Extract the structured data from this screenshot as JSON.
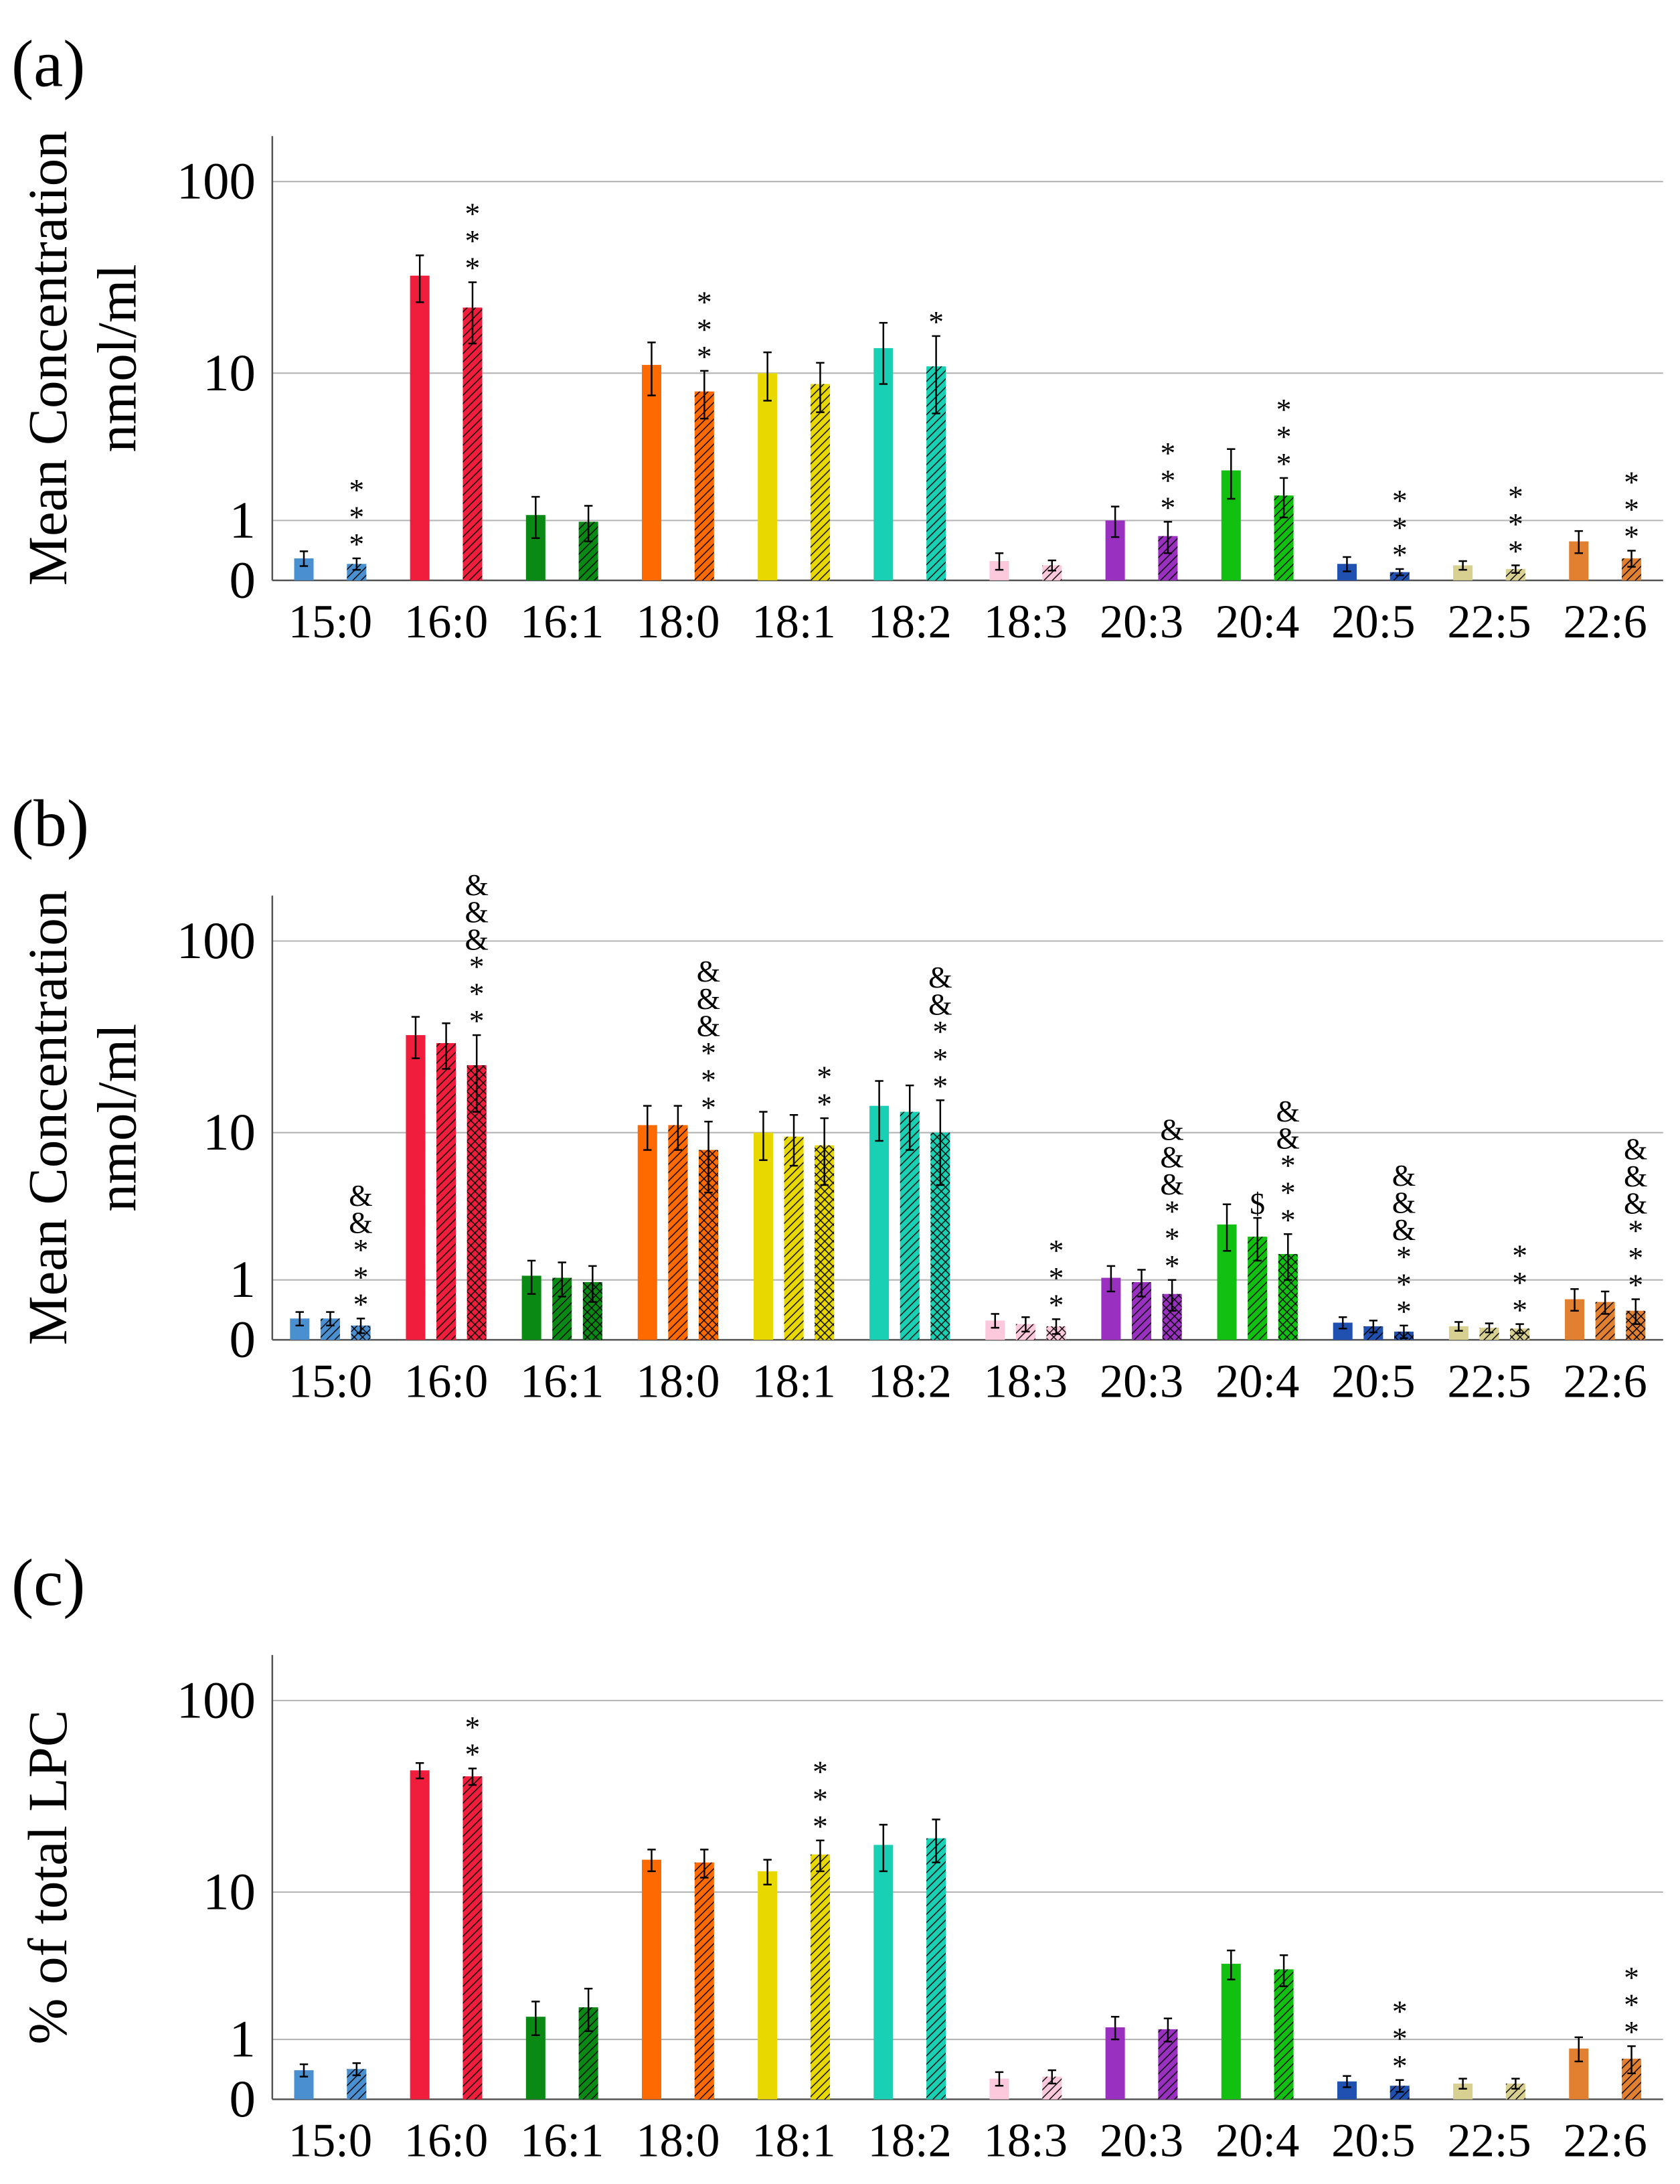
{
  "chart_data": [
    {
      "type": "bar",
      "panel_label": "(a)",
      "ylabel": [
        "Mean Concentration",
        "nmol/ml"
      ],
      "categories": [
        "15:0",
        "16:0",
        "16:1",
        "18:0",
        "18:1",
        "18:2",
        "18:3",
        "20:3",
        "20:4",
        "20:5",
        "22:5",
        "22:6"
      ],
      "colors": [
        "#4a90d0",
        "#f01e3c",
        "#0a8a14",
        "#ff6a00",
        "#e8d800",
        "#1ad0b4",
        "#fcc8dc",
        "#9a30c0",
        "#12c012",
        "#2050b0",
        "#d8d090",
        "#e08030"
      ],
      "series": [
        {
          "pattern": "solid",
          "values": [
            0.29,
            33,
            1.13,
            11.1,
            10.0,
            13.7,
            0.25,
            1.0,
            2.57,
            0.21,
            0.19,
            0.57
          ],
          "errors": [
            0.11,
            9,
            0.5,
            3.6,
            3,
            5,
            0.12,
            0.35,
            1,
            0.1,
            0.06,
            0.2
          ],
          "annotations": [
            null,
            null,
            null,
            null,
            null,
            null,
            null,
            null,
            null,
            null,
            null,
            null
          ]
        },
        {
          "pattern": "hatch",
          "values": [
            0.21,
            22.5,
            0.97,
            7.9,
            8.7,
            10.9,
            0.19,
            0.67,
            1.67,
            0.1,
            0.14,
            0.29
          ],
          "errors": [
            0.08,
            8,
            0.4,
            2.4,
            2.7,
            5,
            0.07,
            0.3,
            0.6,
            0.04,
            0.05,
            0.12
          ],
          "annotations": [
            "***",
            "***",
            null,
            "***",
            null,
            "*",
            null,
            "***",
            "***",
            "***",
            "***",
            "***"
          ]
        }
      ],
      "ylim": [
        0,
        170
      ],
      "yticks": [
        0,
        1,
        10,
        100
      ],
      "yscale": "log1p",
      "grid": true
    },
    {
      "type": "bar",
      "panel_label": "(b)",
      "ylabel": [
        "Mean Concentration",
        "nmol/ml"
      ],
      "categories": [
        "15:0",
        "16:0",
        "16:1",
        "18:0",
        "18:1",
        "18:2",
        "18:3",
        "20:3",
        "20:4",
        "20:5",
        "22:5",
        "22:6"
      ],
      "colors": [
        "#4a90d0",
        "#f01e3c",
        "#0a8a14",
        "#ff6a00",
        "#e8d800",
        "#1ad0b4",
        "#fcc8dc",
        "#9a30c0",
        "#12c012",
        "#2050b0",
        "#d8d090",
        "#e08030"
      ],
      "series": [
        {
          "pattern": "solid",
          "values": [
            0.28,
            33,
            1.1,
            11,
            10,
            14,
            0.25,
            1.05,
            2.8,
            0.22,
            0.17,
            0.6
          ],
          "errors": [
            0.1,
            8,
            0.4,
            3,
            3,
            5,
            0.1,
            0.3,
            1,
            0.08,
            0.06,
            0.2
          ],
          "annotations": [
            null,
            null,
            null,
            null,
            null,
            null,
            null,
            null,
            null,
            null,
            null,
            null
          ]
        },
        {
          "pattern": "hatch",
          "values": [
            0.28,
            30,
            1.05,
            11,
            9.5,
            13,
            0.2,
            0.95,
            2.3,
            0.17,
            0.15,
            0.55
          ],
          "errors": [
            0.1,
            8,
            0.4,
            3,
            3,
            5,
            0.1,
            0.3,
            0.8,
            0.08,
            0.06,
            0.2
          ],
          "annotations": [
            null,
            null,
            null,
            null,
            null,
            null,
            null,
            null,
            "$",
            null,
            null,
            null
          ]
        },
        {
          "pattern": "cross",
          "values": [
            0.18,
            23,
            0.95,
            8,
            8.5,
            10,
            0.17,
            0.7,
            1.7,
            0.1,
            0.14,
            0.4
          ],
          "errors": [
            0.1,
            10,
            0.4,
            3.5,
            3.5,
            5,
            0.1,
            0.3,
            0.7,
            0.08,
            0.06,
            0.2
          ],
          "annotations": [
            "&&***",
            "&&&***",
            null,
            "&&&***",
            "**",
            "&&***",
            "***",
            "&&&***",
            "&&***",
            "&&&***",
            "***",
            "&&&***"
          ]
        }
      ],
      "ylim": [
        0,
        170
      ],
      "yticks": [
        0,
        1,
        10,
        100
      ],
      "yscale": "log1p",
      "grid": true
    },
    {
      "type": "bar",
      "panel_label": "(c)",
      "ylabel": [
        "% of total LPC"
      ],
      "categories": [
        "15:0",
        "16:0",
        "16:1",
        "18:0",
        "18:1",
        "18:2",
        "18:3",
        "20:3",
        "20:4",
        "20:5",
        "22:5",
        "22:6"
      ],
      "colors": [
        "#4a90d0",
        "#f01e3c",
        "#0a8a14",
        "#ff6a00",
        "#e8d800",
        "#1ad0b4",
        "#fcc8dc",
        "#9a30c0",
        "#12c012",
        "#2050b0",
        "#d8d090",
        "#e08030"
      ],
      "series": [
        {
          "pattern": "solid",
          "values": [
            0.4,
            44,
            1.6,
            15,
            13,
            18,
            0.27,
            1.3,
            3.8,
            0.23,
            0.2,
            0.8
          ],
          "errors": [
            0.1,
            4,
            0.5,
            2,
            2,
            5,
            0.1,
            0.3,
            0.8,
            0.08,
            0.07,
            0.25
          ],
          "annotations": [
            null,
            null,
            null,
            null,
            null,
            null,
            null,
            null,
            null,
            null,
            null,
            null
          ]
        },
        {
          "pattern": "hatch",
          "values": [
            0.42,
            41,
            1.9,
            14.5,
            16,
            19.5,
            0.3,
            1.25,
            3.5,
            0.17,
            0.2,
            0.6
          ],
          "errors": [
            0.1,
            4,
            0.7,
            2.5,
            3,
            5,
            0.1,
            0.3,
            0.8,
            0.08,
            0.07,
            0.25
          ],
          "annotations": [
            null,
            "**",
            null,
            null,
            "***",
            null,
            null,
            null,
            null,
            "***",
            null,
            "***"
          ]
        }
      ],
      "ylim": [
        0,
        170
      ],
      "yticks": [
        0,
        1,
        10,
        100
      ],
      "yscale": "log1p",
      "grid": true
    }
  ]
}
